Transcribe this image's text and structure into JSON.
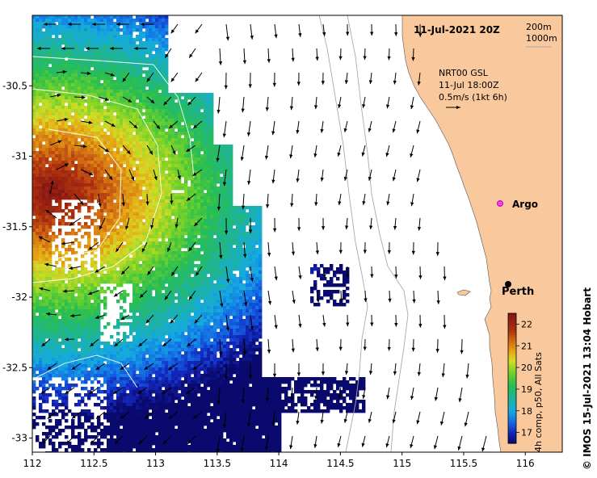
{
  "map": {
    "date_title": "11-Jul-2021 20Z",
    "depth_legend": [
      "200m",
      "1000m"
    ],
    "current_info": {
      "product": "NRT00 GSL",
      "time": "11-Jul 18:00Z",
      "scale": "0.5m/s (1kt 6h)"
    },
    "places": [
      {
        "name": "Argo",
        "lon": 115.77,
        "lat": -31.4,
        "marker": "magenta-star"
      },
      {
        "name": "Perth",
        "lon": 115.86,
        "lat": -31.95,
        "marker": "black-dot"
      }
    ],
    "credit": "© IMOS 15-Jul-2021 13:04 Hobart",
    "colorbar": {
      "title": "4h comp, p50, All Sats",
      "ticks": [
        "17",
        "18",
        "19",
        "20",
        "21",
        "22"
      ],
      "min": 16.5,
      "max": 22.5
    },
    "axes": {
      "x_ticks": [
        "112",
        "112.5",
        "113",
        "113.5",
        "114",
        "114.5",
        "115",
        "115.5",
        "116"
      ],
      "y_ticks": [
        "-30.5",
        "-31",
        "-31.5",
        "-32",
        "-32.5",
        "-33"
      ],
      "lon_range": [
        112,
        116.3
      ],
      "lat_range": [
        -33.1,
        -30.0
      ]
    },
    "colors": {
      "land": "#f9c99d",
      "ocean": "#ffffff",
      "contour": "#aaaaaa"
    }
  }
}
